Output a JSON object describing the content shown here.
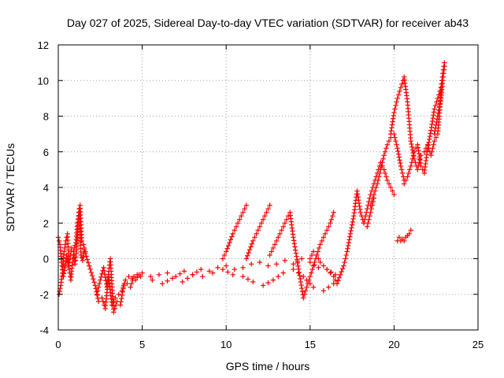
{
  "chart_data": {
    "type": "scatter",
    "title": "Day 027 of 2025, Sidereal Day-to-day VTEC variation (SDTVAR) for receiver ab43",
    "xlabel": "GPS time / hours",
    "ylabel": "SDTVAR / TECUs",
    "xlim": [
      0,
      25
    ],
    "ylim": [
      -4,
      12
    ],
    "xticks": [
      0,
      5,
      10,
      15,
      20,
      25
    ],
    "yticks": [
      -4,
      -2,
      0,
      2,
      4,
      6,
      8,
      10,
      12
    ],
    "grid": true,
    "marker": "+",
    "color": "#ff0000",
    "series": [
      {
        "name": "SDTVAR",
        "x": [
          0.0,
          0.1,
          0.2,
          0.3,
          0.4,
          0.5,
          0.6,
          0.7,
          0.8,
          0.9,
          1.0,
          1.1,
          1.2,
          1.3,
          1.4,
          1.5,
          1.6,
          0.05,
          0.15,
          0.25,
          0.35,
          0.45,
          0.55,
          0.65,
          0.75,
          0.85,
          0.95,
          1.05,
          1.15,
          1.25,
          1.35,
          1.45,
          1.55,
          2.2,
          2.4,
          2.6,
          2.8,
          3.0,
          3.2,
          3.4,
          3.6,
          3.8,
          4.0,
          4.2,
          4.4,
          4.6,
          4.8,
          5.0,
          2.3,
          2.5,
          2.7,
          2.9,
          3.1,
          3.3,
          3.5,
          3.7,
          3.9,
          4.1,
          4.3,
          4.5,
          4.7,
          4.9,
          5.5,
          6.0,
          6.5,
          7.0,
          7.5,
          8.0,
          8.5,
          9.0,
          9.5,
          10.0,
          10.5,
          11.0,
          11.5,
          12.0,
          12.5,
          13.0,
          13.5,
          14.0,
          14.5,
          15.0,
          15.5,
          16.0,
          16.5,
          5.6,
          6.2,
          6.8,
          7.4,
          8.0,
          8.6,
          9.2,
          9.8,
          10.4,
          11.0,
          11.6,
          12.2,
          12.8,
          13.4,
          14.0,
          14.6,
          15.2,
          15.8,
          16.4,
          9.8,
          10.0,
          10.2,
          10.4,
          10.6,
          10.8,
          11.0,
          11.2,
          11.2,
          11.4,
          11.6,
          11.8,
          12.0,
          12.2,
          12.4,
          12.6,
          12.6,
          12.8,
          13.0,
          13.2,
          13.4,
          13.6,
          13.8,
          14.0,
          14.6,
          14.8,
          15.0,
          15.2,
          15.4,
          15.6,
          15.8,
          16.0,
          16.2,
          16.4,
          15.0,
          15.2,
          15.4,
          15.6,
          15.8,
          16.0,
          16.2,
          16.4,
          16.6,
          17.0,
          17.2,
          17.4,
          17.6,
          17.8,
          18.0,
          18.2,
          18.4,
          18.6,
          18.8,
          18.2,
          18.4,
          18.6,
          18.8,
          19.0,
          19.2,
          19.4,
          19.6,
          19.8,
          20.0,
          18.6,
          18.8,
          19.0,
          19.2,
          19.4,
          19.6,
          19.8,
          20.0,
          20.2,
          20.4,
          20.6,
          19.8,
          20.0,
          20.2,
          20.4,
          20.6,
          20.8,
          21.0,
          21.2,
          21.4,
          21.6,
          20.6,
          20.8,
          21.0,
          21.2,
          21.4,
          21.6,
          21.8,
          22.0,
          22.2,
          22.4,
          22.6,
          22.8,
          20.2,
          20.3,
          20.4,
          20.5,
          20.6,
          20.7,
          20.8,
          20.9,
          21.0,
          21.8,
          22.0,
          22.2,
          22.4,
          22.6,
          22.7,
          22.8,
          22.9,
          23.0,
          22.4,
          22.6,
          22.8,
          22.9,
          23.0
        ],
        "y": [
          1.2,
          0.8,
          -0.2,
          -1.0,
          -0.5,
          0.2,
          -0.4,
          0.0,
          0.6,
          0.4,
          -0.3,
          0.5,
          2.4,
          3.0,
          1.0,
          0.8,
          0.4,
          -2.0,
          -1.5,
          -0.8,
          0.4,
          1.0,
          1.4,
          -0.6,
          -1.2,
          -0.2,
          0.6,
          0.9,
          2.0,
          2.8,
          0.2,
          -0.1,
          0.5,
          -1.5,
          -2.4,
          -2.2,
          -2.8,
          -1.0,
          -2.6,
          -2.2,
          -2.0,
          -1.8,
          -1.2,
          -1.0,
          -1.1,
          -1.2,
          -0.9,
          -0.8,
          -2.0,
          -1.2,
          -0.5,
          -1.6,
          0.0,
          -3.0,
          -2.4,
          -2.6,
          -1.5,
          -1.4,
          -1.6,
          -1.0,
          -0.9,
          -1.0,
          -1.0,
          -0.9,
          -0.8,
          -1.0,
          -0.7,
          -0.9,
          -0.6,
          -0.7,
          -0.5,
          -0.4,
          -0.6,
          -0.5,
          -0.3,
          -0.2,
          -0.4,
          -0.3,
          -0.1,
          -0.3,
          0.0,
          -0.2,
          -0.5,
          -0.6,
          -0.9,
          -1.2,
          -1.4,
          -1.1,
          -1.3,
          -0.9,
          -1.0,
          -0.8,
          -0.6,
          -0.9,
          -1.0,
          -1.3,
          -1.5,
          -1.2,
          -0.8,
          -0.6,
          -1.0,
          -1.6,
          -1.8,
          -1.4,
          0.0,
          0.4,
          0.9,
          1.4,
          1.8,
          2.2,
          2.6,
          3.0,
          0.0,
          0.5,
          1.0,
          1.4,
          1.8,
          2.2,
          2.6,
          3.0,
          0.2,
          0.6,
          1.0,
          1.4,
          1.8,
          2.2,
          2.6,
          1.2,
          -2.2,
          -1.6,
          -1.0,
          -0.4,
          0.2,
          0.8,
          1.2,
          1.6,
          2.0,
          2.6,
          0.0,
          0.4,
          0.2,
          -0.2,
          -0.4,
          -0.6,
          -0.8,
          -1.0,
          -1.4,
          -0.4,
          0.4,
          1.4,
          2.4,
          3.8,
          2.6,
          2.0,
          1.8,
          2.6,
          3.4,
          2.0,
          2.8,
          3.6,
          4.2,
          4.8,
          5.4,
          5.0,
          4.4,
          4.0,
          3.6,
          3.0,
          3.6,
          4.2,
          5.0,
          5.8,
          6.4,
          6.8,
          7.0,
          6.2,
          5.2,
          4.4,
          7.0,
          8.2,
          9.0,
          9.6,
          10.2,
          8.8,
          6.6,
          5.6,
          5.0,
          5.8,
          4.2,
          4.6,
          5.2,
          6.0,
          6.4,
          5.2,
          4.8,
          6.2,
          7.2,
          8.4,
          9.0,
          9.6,
          1.0,
          1.2,
          1.0,
          1.1,
          1.0,
          1.2,
          1.3,
          1.4,
          1.6,
          6.0,
          6.4,
          5.8,
          6.6,
          7.0,
          8.0,
          9.6,
          10.4,
          11.0,
          7.0,
          8.0,
          9.0,
          10.0,
          10.8
        ]
      }
    ]
  }
}
